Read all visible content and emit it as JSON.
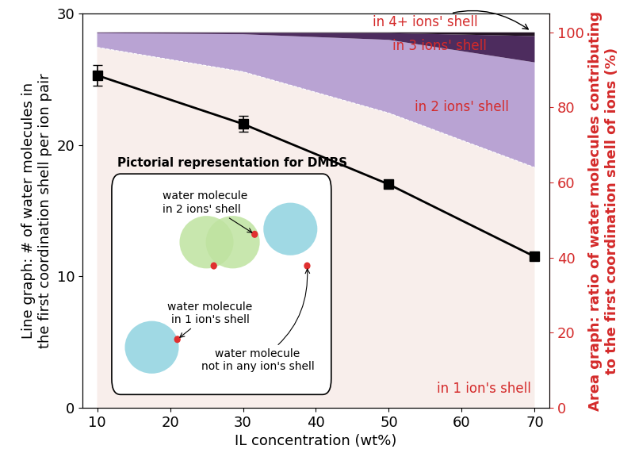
{
  "chart_data": {
    "type": "combo",
    "x_label": "IL concentration (wt%)",
    "y_label": "Line graph: # of water molecules in\nthe first coordination shell per ion pair",
    "y2_label": "Area graph: ratio of water molecules contributing\nto the first coordination shell of ions (%)",
    "x": [
      10,
      30,
      50,
      70
    ],
    "xlim": [
      8,
      72
    ],
    "xticks": [
      10,
      20,
      30,
      40,
      50,
      60,
      70
    ],
    "ylim": [
      0,
      30
    ],
    "yticks": [
      0,
      10,
      20,
      30
    ],
    "y2lim": [
      0,
      105
    ],
    "y2ticks": [
      0,
      20,
      40,
      60,
      80,
      100
    ],
    "stacked": true,
    "series": [
      {
        "type": "line",
        "color": "#000000",
        "marker": "square",
        "line_style": "solid",
        "values": [
          25.3,
          21.6,
          17.0,
          11.5
        ],
        "errors": [
          0.8,
          0.6,
          0.3,
          0.3
        ]
      },
      {
        "name": "in 1 ion's shell",
        "type": "area",
        "axis": "y2",
        "color": "#f8eeeb",
        "values": [
          96,
          89.5,
          78.5,
          64
        ]
      },
      {
        "name": "in 2 ions' shell",
        "type": "area",
        "axis": "y2",
        "color": "#b9a3d3",
        "values": [
          3.8,
          10,
          19.5,
          28
        ]
      },
      {
        "name": "in 3 ions' shell",
        "type": "area",
        "axis": "y2",
        "color": "#4d2c5e",
        "values": [
          0.2,
          0.4,
          1.8,
          7
        ]
      },
      {
        "name": "in 4+ ions' shell",
        "type": "area",
        "axis": "y2",
        "color": "#241424",
        "values": [
          0,
          0.1,
          0.2,
          1
        ]
      }
    ],
    "annotations": {
      "inset_title": "Pictorial representation for DMBS",
      "labels": [
        "water molecule\nin 2 ions' shell",
        "water molecule\nin 1 ion's shell",
        "water molecule\nnot in any ion's shell"
      ]
    }
  }
}
